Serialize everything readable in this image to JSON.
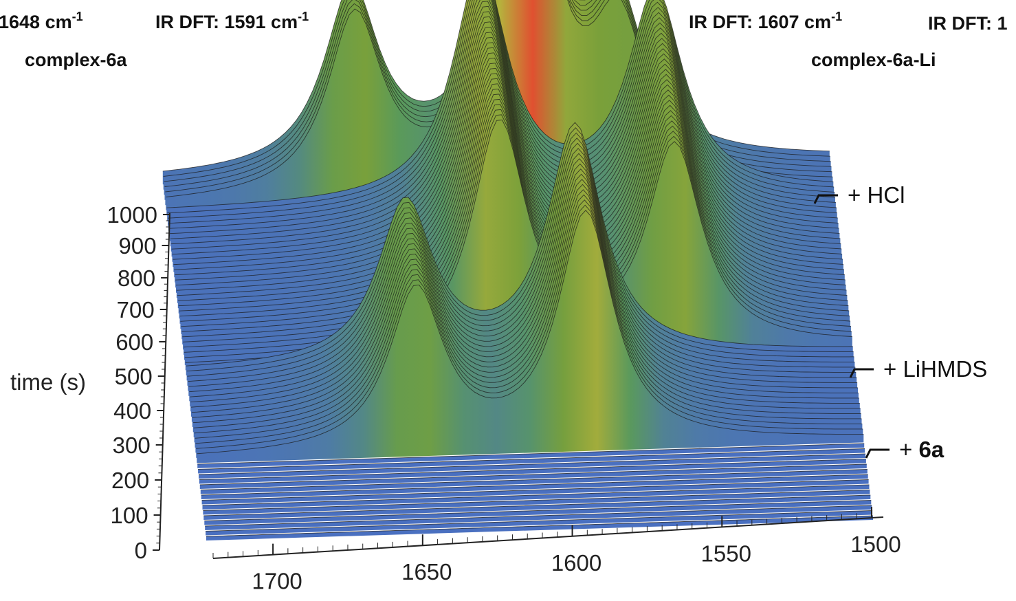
{
  "chart_data": {
    "type": "area",
    "subtype": "3d-waterfall-surface",
    "title": "",
    "ylabel": "time (s)",
    "xlabel": "",
    "x_axis": {
      "ticks": [
        1700,
        1650,
        1600,
        1550,
        1500
      ],
      "reversed": true
    },
    "y_axis": {
      "ticks": [
        0,
        100,
        200,
        300,
        400,
        500,
        600,
        700,
        800,
        900,
        1000
      ]
    },
    "header_labels": [
      {
        "text": "1648 cm",
        "sup": "-1"
      },
      {
        "text": "IR DFT: 1591 cm",
        "sup": "-1"
      },
      {
        "text": "IR DFT: 1607 cm",
        "sup": "-1"
      },
      {
        "text": "IR DFT: 1",
        "sup": ""
      }
    ],
    "complex_labels": [
      "complex-6a",
      "complex-6a-Li"
    ],
    "events": [
      {
        "label": "+ HCl",
        "time": 1000
      },
      {
        "label": "+ LiHMDS",
        "time": 500
      },
      {
        "label_prefix": "+ ",
        "label_bold": "6a",
        "time": 250
      }
    ],
    "phases": [
      {
        "t_start": 0,
        "t_end": 230,
        "peaks": []
      },
      {
        "t_start": 230,
        "t_end": 520,
        "peaks": [
          {
            "x": 1661,
            "height": 0.38
          },
          {
            "x": 1600,
            "height": 0.55
          }
        ]
      },
      {
        "t_start": 520,
        "t_end": 1000,
        "peaks": [
          {
            "x": 1627,
            "height": 0.55
          },
          {
            "x": 1564,
            "height": 0.48
          }
        ]
      },
      {
        "t_start": 1000,
        "t_end": 1090,
        "peaks": [
          {
            "x": 1672,
            "height": 0.42
          },
          {
            "x": 1610,
            "height": 0.85
          },
          {
            "x": 1577,
            "height": 0.36
          }
        ]
      }
    ],
    "grid": false,
    "legend": "none",
    "colormap": [
      "#4a70c0",
      "#5a9a5a",
      "#7aa03a",
      "#e0c040",
      "#e05030"
    ]
  }
}
